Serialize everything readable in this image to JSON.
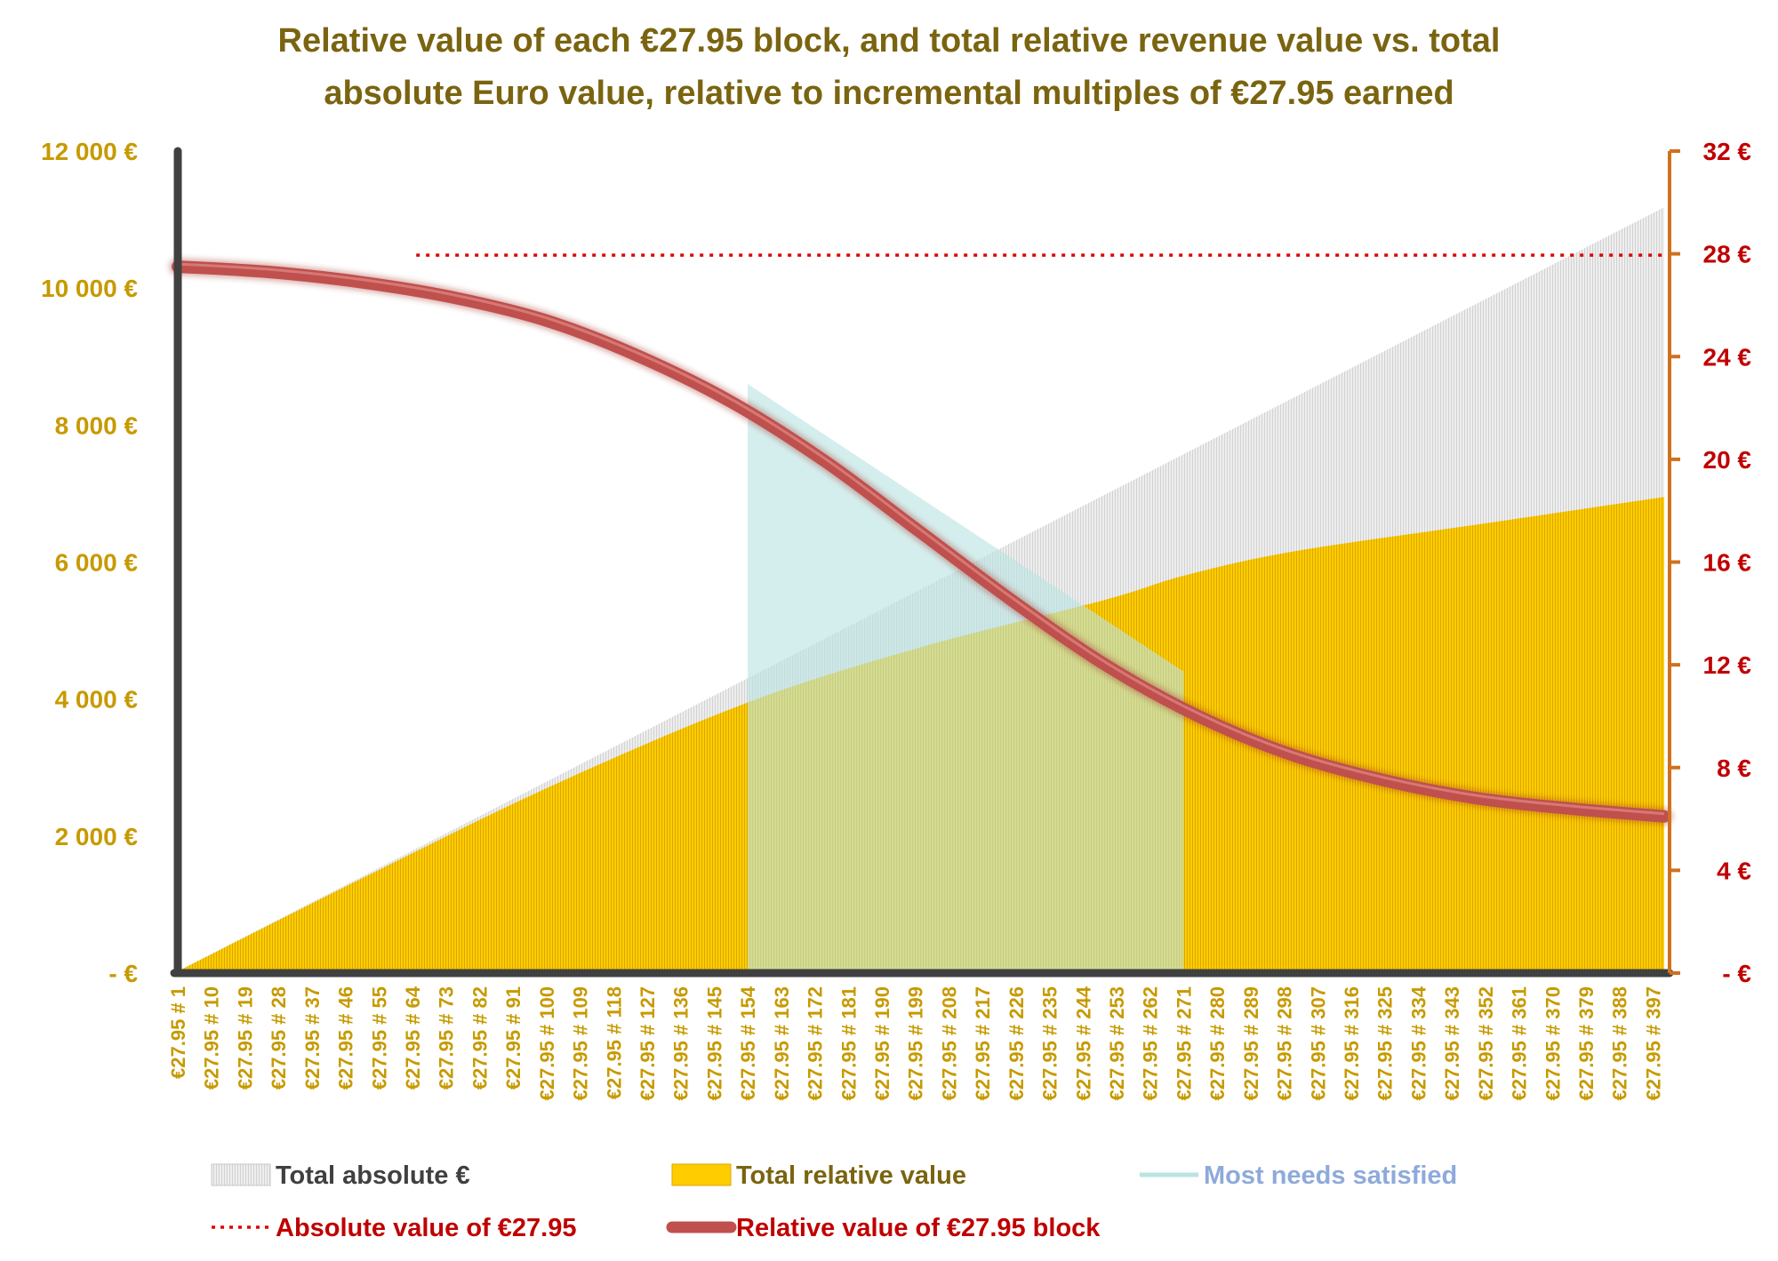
{
  "chart_data": {
    "type": "area",
    "title_lines": [
      "Relative value of each €27.95 block, and total relative revenue value vs. total",
      "absolute Euro value, relative to incremental multiples of €27.95 earned"
    ],
    "block_value": 27.95,
    "n_blocks": 400,
    "left_axis": {
      "ylim": [
        0,
        12000
      ],
      "ticks": [
        0,
        2000,
        4000,
        6000,
        8000,
        10000,
        12000
      ],
      "tick_labels": [
        "-  €",
        "2 000  €",
        "4 000  €",
        "6 000  €",
        "8 000  €",
        "10 000  €",
        "12 000  €"
      ]
    },
    "right_axis": {
      "ylim": [
        0,
        32
      ],
      "ticks": [
        0,
        4,
        8,
        12,
        16,
        20,
        24,
        28,
        32
      ],
      "tick_labels": [
        "-  €",
        "4  €",
        "8  €",
        "12  €",
        "16  €",
        "20  €",
        "24  €",
        "28  €",
        "32  €"
      ]
    },
    "x_tick_labels": [
      "€27.95 # 1",
      "€27.95 # 10",
      "€27.95 # 19",
      "€27.95 # 28",
      "€27.95 # 37",
      "€27.95 # 46",
      "€27.95 # 55",
      "€27.95 # 64",
      "€27.95 # 73",
      "€27.95 # 82",
      "€27.95 # 91",
      "€27.95 # 100",
      "€27.95 # 109",
      "€27.95 # 118",
      "€27.95 # 127",
      "€27.95 # 136",
      "€27.95 # 145",
      "€27.95 # 154",
      "€27.95 # 163",
      "€27.95 # 172",
      "€27.95 # 181",
      "€27.95 # 190",
      "€27.95 # 199",
      "€27.95 # 208",
      "€27.95 # 217",
      "€27.95 # 226",
      "€27.95 # 235",
      "€27.95 # 244",
      "€27.95 # 253",
      "€27.95 # 262",
      "€27.95 # 271",
      "€27.95 # 280",
      "€27.95 # 289",
      "€27.95 # 298",
      "€27.95 # 307",
      "€27.95 # 316",
      "€27.95 # 325",
      "€27.95 # 334",
      "€27.95 # 343",
      "€27.95 # 352",
      "€27.95 # 361",
      "€27.95 # 370",
      "€27.95 # 379",
      "€27.95 # 388",
      "€27.95 # 397"
    ],
    "series": [
      {
        "name": "Total absolute €",
        "axis": "left",
        "kind": "area",
        "color": "#e6e6e6",
        "x": [
          1,
          400
        ],
        "values": [
          27.95,
          11180
        ]
      },
      {
        "name": "Total relative value",
        "axis": "left",
        "kind": "area",
        "color": "#ffcc00",
        "x": [
          1,
          50,
          100,
          154,
          200,
          250,
          271,
          300,
          350,
          400
        ],
        "values": [
          27,
          1370,
          2700,
          3950,
          4750,
          5450,
          5800,
          6150,
          6550,
          6950
        ]
      },
      {
        "name": "Most needs satisfied",
        "axis": "left",
        "kind": "band",
        "color": "#b9e4e2",
        "x_range": [
          154,
          271
        ],
        "values": [
          8600,
          4400
        ]
      },
      {
        "name": "Absolute value of €27.95",
        "axis": "right",
        "kind": "line",
        "style": "dotted",
        "color": "#e00000",
        "x": [
          65,
          400
        ],
        "values": [
          27.95,
          27.95
        ]
      },
      {
        "name": "Relative value of €27.95 block",
        "axis": "right",
        "kind": "line",
        "color": "#c0504d",
        "x": [
          1,
          25,
          50,
          75,
          100,
          125,
          150,
          175,
          200,
          225,
          250,
          275,
          300,
          325,
          350,
          375,
          400
        ],
        "values": [
          27.5,
          27.3,
          26.9,
          26.3,
          25.4,
          24.0,
          22.2,
          19.9,
          17.2,
          14.5,
          12.0,
          10.0,
          8.5,
          7.5,
          6.8,
          6.4,
          6.1
        ]
      }
    ],
    "legend": [
      {
        "label": "Total absolute €",
        "color": "#404040",
        "marker": "box-grey"
      },
      {
        "label": "Total relative value",
        "color": "#7a6410",
        "marker": "box-gold"
      },
      {
        "label": "Most needs satisfied",
        "color": "#8eaadb",
        "marker": "line-cyan"
      },
      {
        "label": "Absolute value of €27.95",
        "color": "#c00000",
        "marker": "line-dotted-red"
      },
      {
        "label": "Relative value of €27.95 block",
        "color": "#c00000",
        "marker": "line-thick-red"
      }
    ],
    "legend_position": "bottom",
    "grid": false
  }
}
